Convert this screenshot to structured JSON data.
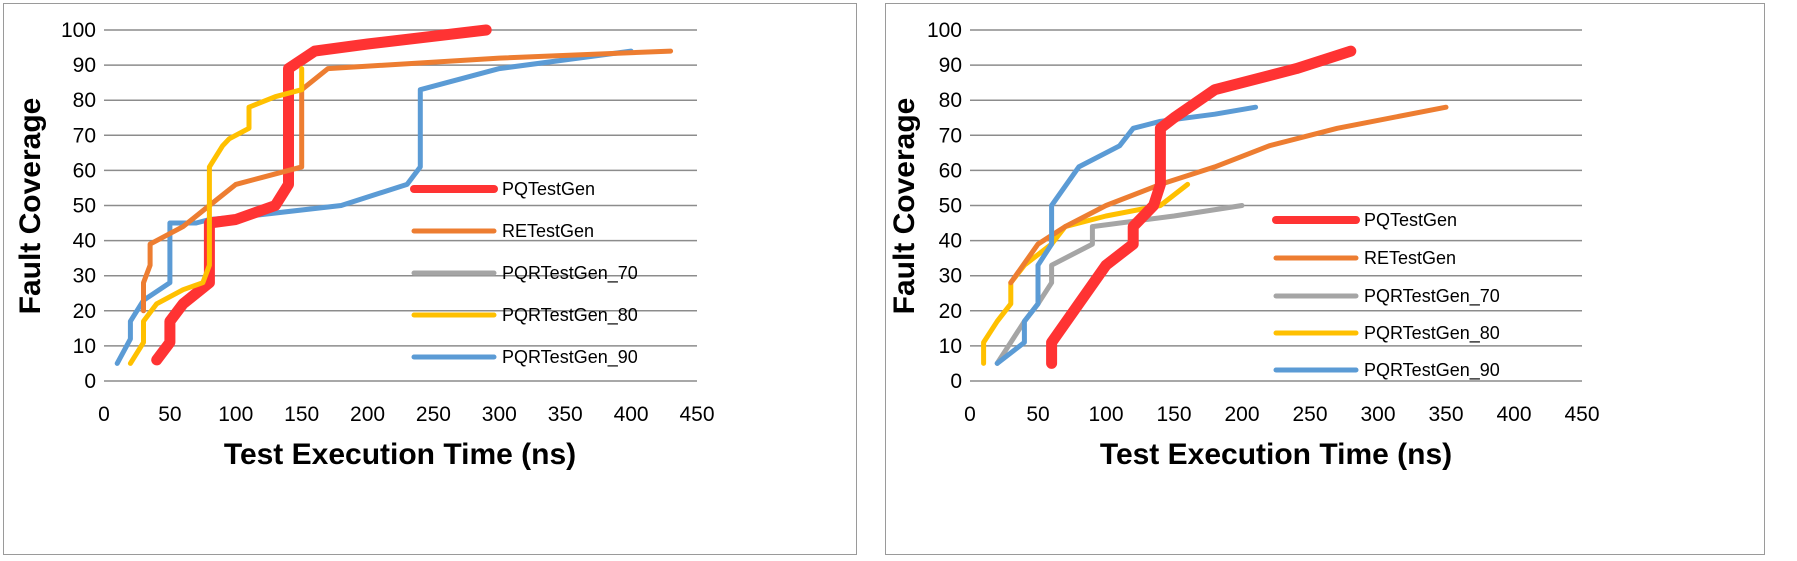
{
  "chart_data": [
    {
      "type": "line",
      "xlabel": "Test Execution Time (ns)",
      "ylabel": "Fault Coverage",
      "xlim": [
        0,
        450
      ],
      "ylim": [
        0,
        100
      ],
      "xticks": [
        0,
        50,
        100,
        150,
        200,
        250,
        300,
        350,
        400,
        450
      ],
      "yticks": [
        0,
        10,
        20,
        30,
        40,
        50,
        60,
        70,
        80,
        90,
        100
      ],
      "grid": "horizontal",
      "legend": "right-center",
      "series": [
        {
          "name": "PQRTestGen_90",
          "color": "#5b9bd5",
          "width": 5,
          "x": [
            10,
            20,
            20,
            30,
            50,
            50,
            70,
            80,
            110,
            180,
            230,
            240,
            240,
            300,
            400
          ],
          "y": [
            5,
            12,
            17,
            23,
            28,
            45,
            45,
            46,
            47,
            50,
            56,
            61,
            83,
            89,
            94
          ]
        },
        {
          "name": "PQRTestGen_70",
          "color": "#a5a5a5",
          "width": 5,
          "x": [],
          "y": []
        },
        {
          "name": "PQTestGen",
          "color": "#ff3333",
          "width": 11,
          "x": [
            40,
            50,
            50,
            60,
            80,
            80,
            100,
            130,
            140,
            140,
            160,
            200,
            290
          ],
          "y": [
            6,
            11,
            17,
            22,
            28,
            45,
            46,
            50,
            56,
            89,
            94,
            96,
            100
          ]
        },
        {
          "name": "RETestGen",
          "color": "#ed7d31",
          "width": 5,
          "x": [
            30,
            30,
            35,
            35,
            45,
            60,
            80,
            100,
            120,
            150,
            150,
            170,
            300,
            430
          ],
          "y": [
            20,
            28,
            33,
            39,
            41,
            44,
            50,
            56,
            58,
            61,
            83,
            89,
            92,
            94
          ]
        },
        {
          "name": "PQRTestGen_80",
          "color": "#ffc000",
          "width": 5,
          "x": [
            20,
            30,
            30,
            40,
            60,
            75,
            80,
            80,
            90,
            95,
            110,
            110,
            130,
            150,
            150
          ],
          "y": [
            5,
            11,
            17,
            22,
            26,
            28,
            33,
            61,
            67,
            69,
            72,
            78,
            81,
            83,
            89
          ]
        }
      ],
      "legend_order": [
        "PQTestGen",
        "RETestGen",
        "PQRTestGen_70",
        "PQRTestGen_80",
        "PQRTestGen_90"
      ]
    },
    {
      "type": "line",
      "xlabel": "Test Execution Time (ns)",
      "ylabel": "Fault Coverage",
      "xlim": [
        0,
        450
      ],
      "ylim": [
        0,
        100
      ],
      "xticks": [
        0,
        50,
        100,
        150,
        200,
        250,
        300,
        350,
        400,
        450
      ],
      "yticks": [
        0,
        10,
        20,
        30,
        40,
        50,
        60,
        70,
        80,
        90,
        100
      ],
      "grid": "horizontal",
      "legend": "right-center",
      "series": [
        {
          "name": "PQRTestGen_70",
          "color": "#a5a5a5",
          "width": 5,
          "x": [
            20,
            40,
            50,
            60,
            60,
            90,
            90,
            150,
            200
          ],
          "y": [
            5,
            17,
            22,
            28,
            33,
            39,
            44,
            47,
            50
          ]
        },
        {
          "name": "PQRTestGen_80",
          "color": "#ffc000",
          "width": 5,
          "x": [
            10,
            10,
            20,
            30,
            30,
            40,
            60,
            70,
            100,
            140,
            160
          ],
          "y": [
            5,
            11,
            17,
            22,
            28,
            33,
            39,
            44,
            47,
            50,
            56
          ]
        },
        {
          "name": "RETestGen",
          "color": "#ed7d31",
          "width": 5,
          "x": [
            30,
            50,
            70,
            100,
            140,
            180,
            220,
            270,
            350
          ],
          "y": [
            28,
            39,
            44,
            50,
            56,
            61,
            67,
            72,
            78
          ]
        },
        {
          "name": "PQRTestGen_90",
          "color": "#5b9bd5",
          "width": 5,
          "x": [
            20,
            40,
            40,
            50,
            50,
            60,
            60,
            80,
            110,
            120,
            140,
            180,
            210
          ],
          "y": [
            5,
            11,
            17,
            22,
            33,
            39,
            50,
            61,
            67,
            72,
            74,
            76,
            78
          ]
        },
        {
          "name": "PQTestGen",
          "color": "#ff3333",
          "width": 11,
          "x": [
            60,
            60,
            80,
            100,
            120,
            120,
            135,
            140,
            140,
            150,
            180,
            240,
            280
          ],
          "y": [
            5,
            11,
            22,
            33,
            39,
            44,
            50,
            56,
            72,
            75,
            83,
            89,
            94
          ]
        }
      ],
      "legend_order": [
        "PQTestGen",
        "RETestGen",
        "PQRTestGen_70",
        "PQRTestGen_80",
        "PQRTestGen_90"
      ]
    }
  ]
}
